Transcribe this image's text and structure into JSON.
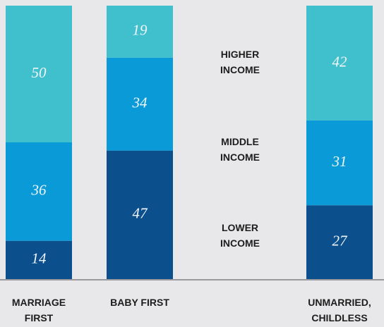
{
  "chart_data": {
    "type": "stacked_bar",
    "categories": [
      "MARRIAGE FIRST",
      "BABY FIRST",
      "UNMARRIED, CHILDLESS"
    ],
    "series": [
      {
        "name": "LOWER INCOME",
        "color": "#0b4f8c",
        "values": [
          14,
          47,
          27
        ]
      },
      {
        "name": "MIDDLE INCOME",
        "color": "#0a9ad7",
        "values": [
          36,
          34,
          31
        ]
      },
      {
        "name": "HIGHER INCOME",
        "color": "#40c0cc",
        "values": [
          50,
          19,
          42
        ]
      }
    ],
    "ylim": [
      0,
      100
    ]
  }
}
